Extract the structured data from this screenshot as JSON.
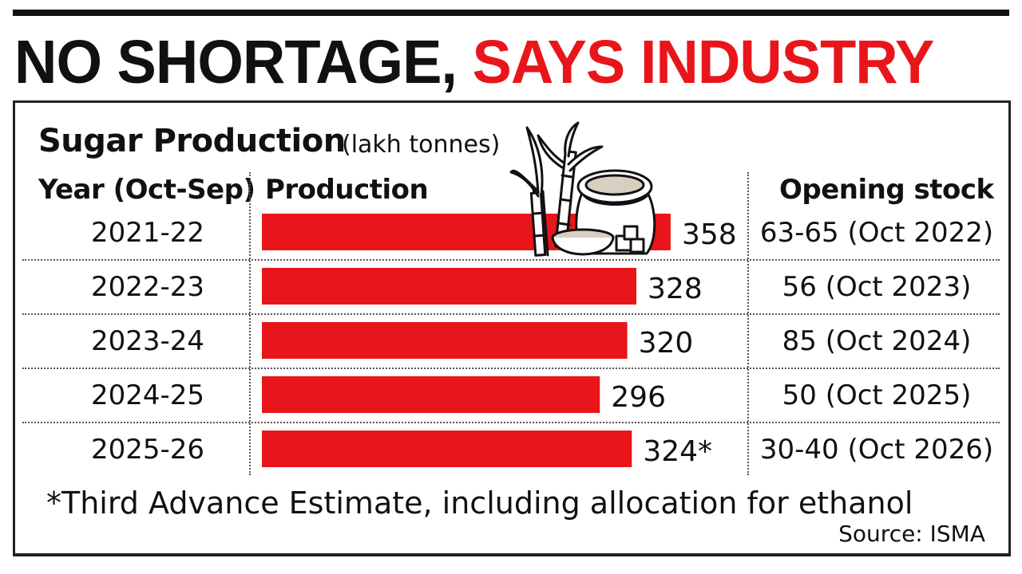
{
  "headline": {
    "part1": "NO SHORTAGE,",
    "part2": "SAYS INDUSTRY"
  },
  "colors": {
    "accent": "#e8161b",
    "ink": "#111111"
  },
  "chart_data": {
    "type": "bar",
    "orientation": "horizontal",
    "title": "Sugar Production",
    "units": "(lakh tonnes)",
    "column_headers": {
      "year": "Year (Oct-Sep)",
      "production": "Production",
      "opening_stock": "Opening stock"
    },
    "categories": [
      "2021-22",
      "2022-23",
      "2023-24",
      "2024-25",
      "2025-26"
    ],
    "values": [
      358,
      328,
      320,
      296,
      324
    ],
    "value_labels": [
      "358",
      "328",
      "320",
      "296",
      "324*"
    ],
    "opening_stock": [
      "63-65 (Oct 2022)",
      "56 (Oct 2023)",
      "85 (Oct 2024)",
      "50 (Oct 2025)",
      "30-40 (Oct 2026)"
    ],
    "bar_color": "#e8161b",
    "footnote": "*Third Advance Estimate, including allocation for ethanol",
    "source": "Source: ISMA"
  },
  "illustration": {
    "icon": "sugarcane-and-sugar-sack-icon"
  }
}
